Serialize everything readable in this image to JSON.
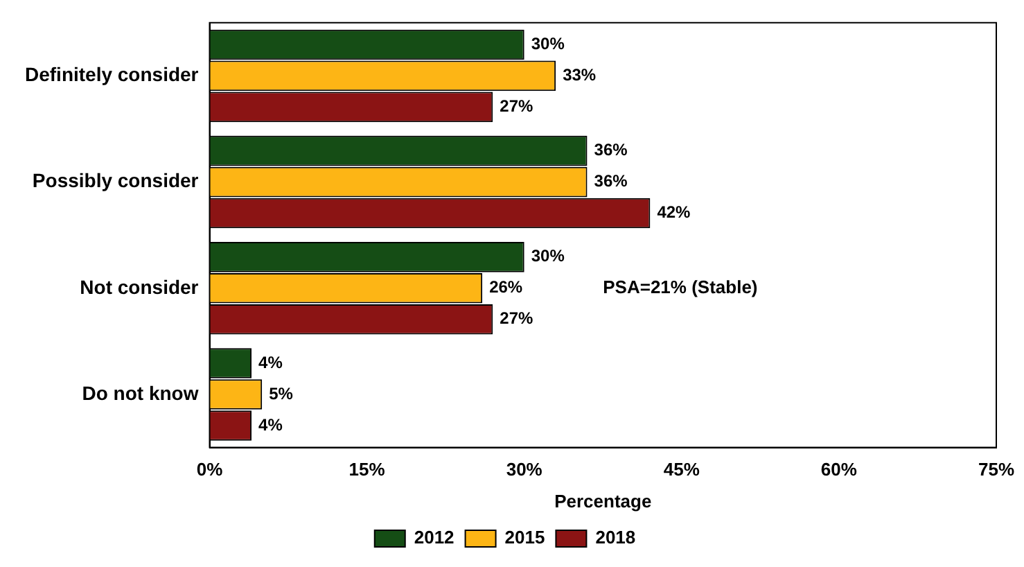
{
  "chart_data": {
    "type": "bar",
    "orientation": "horizontal",
    "xlabel": "Percentage",
    "categories": [
      "Definitely consider",
      "Possibly consider",
      "Not consider",
      "Do not know"
    ],
    "series": [
      {
        "name": "2012",
        "color": "#154d15",
        "values": [
          30,
          36,
          30,
          4
        ],
        "value_labels": [
          "30%",
          "36%",
          "30%",
          "4%"
        ]
      },
      {
        "name": "2015",
        "color": "#fdb515",
        "values": [
          33,
          36,
          26,
          5
        ],
        "value_labels": [
          "33%",
          "36%",
          "26%",
          "5%"
        ]
      },
      {
        "name": "2018",
        "color": "#8b1414",
        "values": [
          27,
          42,
          27,
          4
        ],
        "value_labels": [
          "27%",
          "42%",
          "27%",
          "4%"
        ]
      }
    ],
    "xlim": [
      0,
      75
    ],
    "xticks": [
      {
        "value": 0,
        "label": "0%"
      },
      {
        "value": 15,
        "label": "15%"
      },
      {
        "value": 30,
        "label": "30%"
      },
      {
        "value": 45,
        "label": "45%"
      },
      {
        "value": 60,
        "label": "60%"
      },
      {
        "value": 75,
        "label": "75%"
      }
    ],
    "annotations": [
      "PSA=21% (Stable)"
    ],
    "grid": false,
    "legend": "bottom"
  }
}
